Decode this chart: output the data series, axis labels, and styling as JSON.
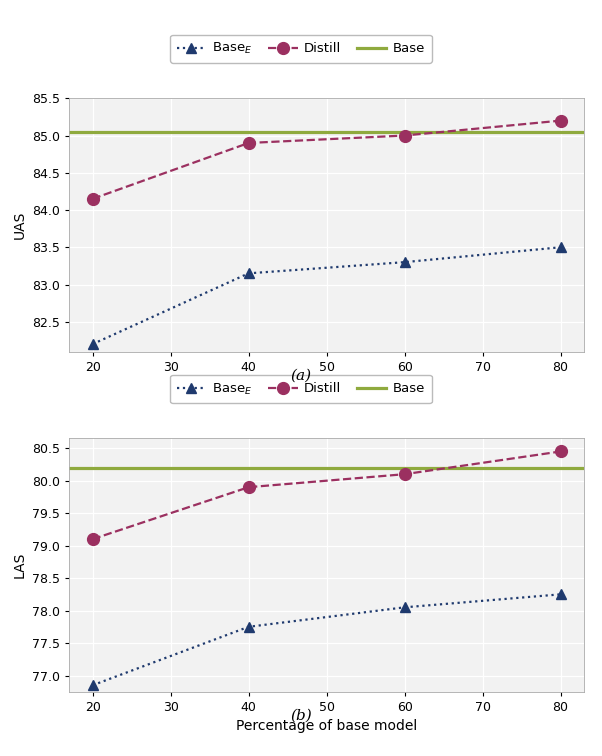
{
  "x": [
    20,
    40,
    60,
    80
  ],
  "uas_base_e": [
    82.2,
    83.15,
    83.3,
    83.5
  ],
  "uas_distill": [
    84.15,
    84.9,
    85.0,
    85.2
  ],
  "uas_base": 85.05,
  "las_base_e": [
    76.85,
    77.75,
    78.05,
    78.25
  ],
  "las_distill": [
    79.1,
    79.9,
    80.1,
    80.45
  ],
  "las_base": 80.2,
  "x_ticks": [
    20,
    30,
    40,
    50,
    60,
    70,
    80
  ],
  "xlabel": "Percentage of base model",
  "uas_ylabel": "UAS",
  "las_ylabel": "LAS",
  "uas_ylim": [
    82.1,
    85.45
  ],
  "las_ylim": [
    76.75,
    80.65
  ],
  "uas_yticks": [
    82.5,
    83.0,
    83.5,
    84.0,
    84.5,
    85.0,
    85.5
  ],
  "las_yticks": [
    77.0,
    77.5,
    78.0,
    78.5,
    79.0,
    79.5,
    80.0,
    80.5
  ],
  "caption_a": "(a)",
  "caption_b": "(b)",
  "base_e_color": "#1f3a6e",
  "distill_color": "#9b3060",
  "base_color": "#8faa3e",
  "legend_labels": [
    "Base$_E$",
    "Distill",
    "Base"
  ],
  "marker_size": 7,
  "line_width": 1.6,
  "background_color": "#f2f2f2"
}
